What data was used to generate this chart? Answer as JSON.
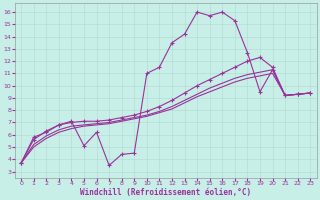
{
  "xlabel": "Windchill (Refroidissement éolien,°C)",
  "bg_color": "#c8eee8",
  "line_color": "#993399",
  "xlim": [
    -0.5,
    23.5
  ],
  "ylim": [
    2.5,
    16.7
  ],
  "xticks": [
    0,
    1,
    2,
    3,
    4,
    5,
    6,
    7,
    8,
    9,
    10,
    11,
    12,
    13,
    14,
    15,
    16,
    17,
    18,
    19,
    20,
    21,
    22,
    23
  ],
  "yticks": [
    3,
    4,
    5,
    6,
    7,
    8,
    9,
    10,
    11,
    12,
    13,
    14,
    15,
    16
  ],
  "series_jagged": [
    [
      3.7,
      5.8,
      6.2,
      6.8,
      7.1,
      5.1,
      6.2,
      3.5,
      4.4,
      4.5,
      11.0,
      11.5,
      13.5,
      14.2,
      16.0,
      15.7,
      16.0,
      15.3,
      12.7,
      9.5,
      11.3,
      9.2,
      9.3,
      9.4
    ]
  ],
  "series_smooth_upper": [
    [
      3.7,
      5.6,
      6.3,
      6.8,
      7.0,
      7.1,
      7.1,
      7.2,
      7.4,
      7.6,
      7.9,
      8.3,
      8.8,
      9.4,
      10.0,
      10.5,
      11.0,
      11.5,
      12.0,
      12.3,
      11.5,
      9.2,
      9.3,
      9.4
    ]
  ],
  "series_smooth_lower1": [
    [
      3.7,
      5.2,
      5.9,
      6.4,
      6.7,
      6.8,
      6.9,
      7.0,
      7.2,
      7.4,
      7.6,
      7.9,
      8.3,
      8.8,
      9.3,
      9.8,
      10.2,
      10.6,
      10.9,
      11.1,
      11.3,
      9.2,
      9.3,
      9.4
    ]
  ],
  "series_smooth_lower2": [
    [
      3.7,
      5.0,
      5.7,
      6.2,
      6.5,
      6.7,
      6.8,
      6.9,
      7.1,
      7.3,
      7.5,
      7.8,
      8.1,
      8.6,
      9.1,
      9.5,
      9.9,
      10.3,
      10.6,
      10.8,
      11.0,
      9.2,
      9.3,
      9.4
    ]
  ]
}
